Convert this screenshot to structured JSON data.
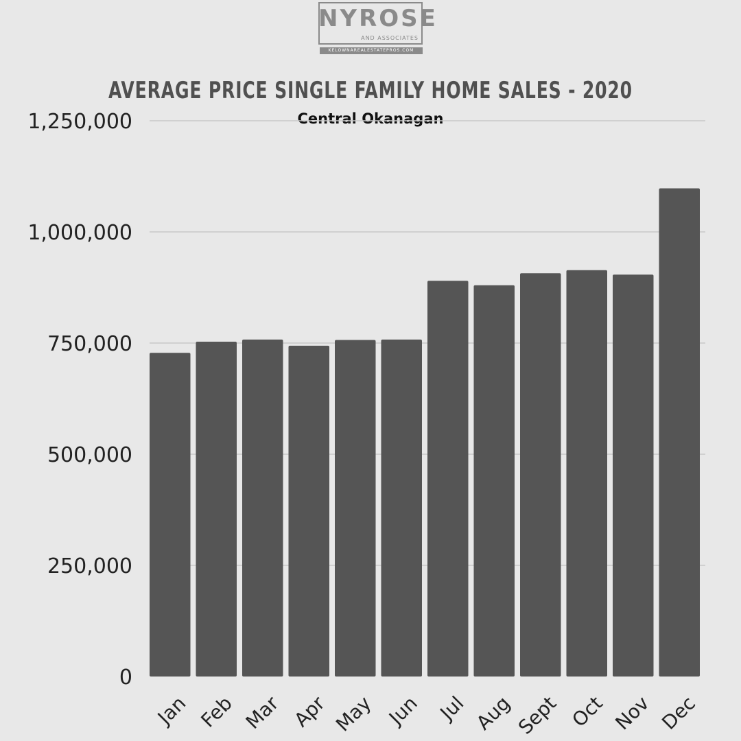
{
  "brand": {
    "name": "NYROSE",
    "tagline": "AND ASSOCIATES",
    "url": "KELOWNAREALESTATEPROS.COM"
  },
  "colors": {
    "background": "#e8e8e8",
    "bar": "#555555",
    "grid": "#c8c8c8"
  },
  "chart_data": {
    "type": "bar",
    "title": "AVERAGE PRICE SINGLE FAMILY HOME SALES - 2020",
    "subtitle": "Central Okanagan",
    "categories": [
      "Jan",
      "Feb",
      "Mar",
      "Apr",
      "May",
      "Jun",
      "Jul",
      "Aug",
      "Sept",
      "Oct",
      "Nov",
      "Dec"
    ],
    "values": [
      728000,
      753000,
      758000,
      744000,
      757000,
      758000,
      890000,
      880000,
      907000,
      914000,
      904000,
      1098000
    ],
    "ylim": [
      0,
      1250000
    ],
    "yticks": [
      0,
      250000,
      500000,
      750000,
      1000000,
      1250000
    ],
    "ytick_labels": [
      "0",
      "250,000",
      "500,000",
      "750,000",
      "1,000,000",
      "1,250,000"
    ],
    "grid": true,
    "legend": "none",
    "xlabel": "",
    "ylabel": ""
  }
}
